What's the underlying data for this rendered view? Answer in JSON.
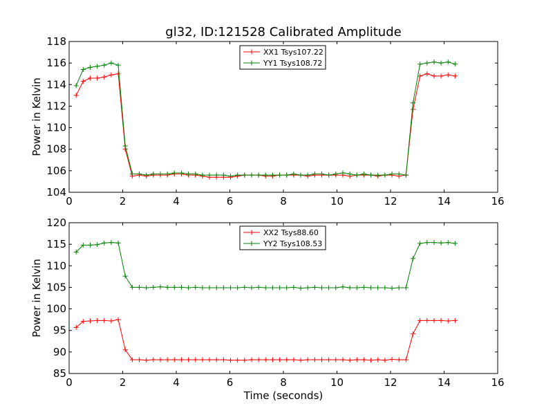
{
  "chart_data": [
    {
      "type": "line",
      "title": "gl32, ID:121528 Calibrated Amplitude",
      "xlabel": "",
      "ylabel": "Power in Kelvin",
      "xlim": [
        0,
        16
      ],
      "ylim": [
        104,
        118
      ],
      "xticks": [
        0,
        2,
        4,
        6,
        8,
        10,
        12,
        14,
        16
      ],
      "yticks": [
        104,
        106,
        108,
        110,
        112,
        114,
        116,
        118
      ],
      "grid": false,
      "legend_position": "upper-center",
      "x": [
        0.262,
        0.524,
        0.786,
        1.048,
        1.31,
        1.572,
        1.834,
        2.096,
        2.358,
        2.62,
        2.882,
        3.144,
        3.406,
        3.668,
        3.93,
        4.192,
        4.454,
        4.716,
        4.978,
        5.24,
        5.502,
        5.764,
        6.026,
        6.288,
        6.55,
        6.812,
        7.074,
        7.336,
        7.598,
        7.86,
        8.122,
        8.384,
        8.646,
        8.908,
        9.17,
        9.432,
        9.694,
        9.956,
        10.218,
        10.48,
        10.742,
        11.004,
        11.266,
        11.528,
        11.79,
        12.052,
        12.314,
        12.576,
        12.838,
        13.1,
        13.362,
        13.624,
        13.886,
        14.148,
        14.41
      ],
      "series": [
        {
          "name": "XX1 Tsys107.22",
          "color": "#ff0000",
          "values": [
            113.0,
            114.3,
            114.6,
            114.6,
            114.7,
            114.9,
            115.0,
            108.0,
            105.5,
            105.6,
            105.5,
            105.6,
            105.6,
            105.6,
            105.7,
            105.7,
            105.6,
            105.6,
            105.5,
            105.4,
            105.4,
            105.4,
            105.4,
            105.5,
            105.6,
            105.6,
            105.6,
            105.5,
            105.5,
            105.6,
            105.6,
            105.6,
            105.6,
            105.5,
            105.6,
            105.6,
            105.6,
            105.6,
            105.6,
            105.5,
            105.6,
            105.6,
            105.6,
            105.5,
            105.6,
            105.6,
            105.5,
            105.6,
            111.7,
            114.8,
            115.0,
            114.8,
            114.8,
            114.9,
            114.8
          ]
        },
        {
          "name": "YY1 Tsys108.72",
          "color": "#008000",
          "values": [
            113.9,
            115.4,
            115.6,
            115.7,
            115.8,
            116.0,
            115.8,
            108.3,
            105.7,
            105.7,
            105.6,
            105.7,
            105.7,
            105.7,
            105.8,
            105.8,
            105.7,
            105.7,
            105.6,
            105.6,
            105.6,
            105.6,
            105.5,
            105.6,
            105.6,
            105.6,
            105.6,
            105.6,
            105.6,
            105.6,
            105.6,
            105.7,
            105.6,
            105.6,
            105.7,
            105.7,
            105.6,
            105.7,
            105.8,
            105.7,
            105.6,
            105.7,
            105.6,
            105.6,
            105.6,
            105.7,
            105.7,
            105.6,
            112.3,
            115.9,
            116.0,
            116.1,
            116.0,
            116.1,
            115.9
          ]
        }
      ]
    },
    {
      "type": "line",
      "title": "",
      "xlabel": "Time (seconds)",
      "ylabel": "Power in Kelvin",
      "xlim": [
        0,
        16
      ],
      "ylim": [
        85,
        120
      ],
      "xticks": [
        0,
        2,
        4,
        6,
        8,
        10,
        12,
        14,
        16
      ],
      "yticks": [
        85,
        90,
        95,
        100,
        105,
        110,
        115,
        120
      ],
      "grid": false,
      "legend_position": "upper-center",
      "x": [
        0.262,
        0.524,
        0.786,
        1.048,
        1.31,
        1.572,
        1.834,
        2.096,
        2.358,
        2.62,
        2.882,
        3.144,
        3.406,
        3.668,
        3.93,
        4.192,
        4.454,
        4.716,
        4.978,
        5.24,
        5.502,
        5.764,
        6.026,
        6.288,
        6.55,
        6.812,
        7.074,
        7.336,
        7.598,
        7.86,
        8.122,
        8.384,
        8.646,
        8.908,
        9.17,
        9.432,
        9.694,
        9.956,
        10.218,
        10.48,
        10.742,
        11.004,
        11.266,
        11.528,
        11.79,
        12.052,
        12.314,
        12.576,
        12.838,
        13.1,
        13.362,
        13.624,
        13.886,
        14.148,
        14.41
      ],
      "series": [
        {
          "name": "XX2 Tsys88.60",
          "color": "#ff0000",
          "values": [
            95.7,
            97.1,
            97.2,
            97.3,
            97.3,
            97.2,
            97.5,
            90.5,
            88.2,
            88.2,
            88.1,
            88.2,
            88.2,
            88.2,
            88.2,
            88.2,
            88.2,
            88.2,
            88.2,
            88.2,
            88.2,
            88.2,
            88.1,
            88.1,
            88.1,
            88.2,
            88.2,
            88.2,
            88.2,
            88.2,
            88.2,
            88.2,
            88.1,
            88.2,
            88.2,
            88.2,
            88.2,
            88.2,
            88.2,
            88.1,
            88.2,
            88.2,
            88.1,
            88.2,
            88.1,
            88.3,
            88.2,
            88.2,
            94.2,
            97.3,
            97.3,
            97.3,
            97.3,
            97.2,
            97.3
          ]
        },
        {
          "name": "YY2 Tsys108.53",
          "color": "#008000",
          "values": [
            113.2,
            114.8,
            114.8,
            114.9,
            115.3,
            115.4,
            115.3,
            107.6,
            105.0,
            105.0,
            104.9,
            105.0,
            105.1,
            105.0,
            105.0,
            105.0,
            104.9,
            105.0,
            104.9,
            104.9,
            104.9,
            104.9,
            104.9,
            104.9,
            105.0,
            104.9,
            105.0,
            104.9,
            104.9,
            104.9,
            104.9,
            105.0,
            104.8,
            104.9,
            105.0,
            104.9,
            104.9,
            104.9,
            105.1,
            104.9,
            104.9,
            105.0,
            104.9,
            104.9,
            104.9,
            104.8,
            104.9,
            104.9,
            111.7,
            115.2,
            115.4,
            115.4,
            115.3,
            115.4,
            115.2
          ]
        }
      ]
    }
  ]
}
